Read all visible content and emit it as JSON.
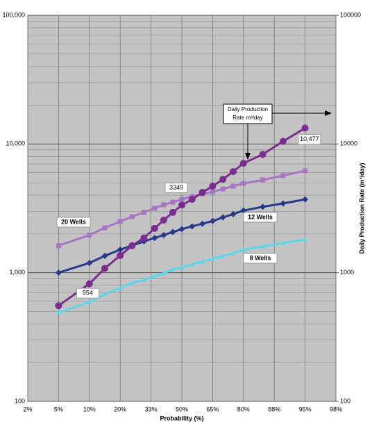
{
  "chart_data": {
    "type": "line",
    "xlabel": "Probability (%)",
    "y2label": "Daily Production Rate (m³/day)",
    "annotation": [
      "Daily Production",
      "Rate m³/day"
    ],
    "xscale": "probability",
    "yscale": "log",
    "grid": true,
    "minor_grid": true,
    "xlim": [
      2,
      98
    ],
    "xticks": [
      {
        "value": 2,
        "label": "2%"
      },
      {
        "value": 5,
        "label": "5%"
      },
      {
        "value": 10,
        "label": "10%"
      },
      {
        "value": 20,
        "label": "20%"
      },
      {
        "value": 33,
        "label": "33%"
      },
      {
        "value": 50,
        "label": "50%"
      },
      {
        "value": 65,
        "label": "65%"
      },
      {
        "value": 80,
        "label": "80%"
      },
      {
        "value": 88,
        "label": "88%"
      },
      {
        "value": 95,
        "label": "95%"
      },
      {
        "value": 98,
        "label": "98%"
      }
    ],
    "ylim": [
      100,
      100000
    ],
    "yticks": [
      100,
      {
        "value": 1000,
        "label": "1,000"
      },
      {
        "value": 10000,
        "label": "10,000"
      },
      {
        "value": 100000,
        "label": "100,000"
      }
    ],
    "y2lim": [
      100,
      100000
    ],
    "y2ticks": [
      100,
      1000,
      10000,
      100000
    ],
    "y2color": "#7b2c8f",
    "x": [
      5,
      10,
      15,
      20,
      25,
      30,
      35,
      40,
      45,
      50,
      55,
      60,
      65,
      70,
      75,
      80,
      85,
      90,
      95
    ],
    "series": [
      {
        "name": "20 Wells",
        "color": "#a674c2",
        "marker": "square",
        "values": [
          1620,
          1960,
          2230,
          2500,
          2720,
          2940,
          3170,
          3370,
          3530,
          3710,
          3900,
          4090,
          4250,
          4470,
          4700,
          4930,
          5260,
          5680,
          6190
        ]
      },
      {
        "name": "12 Wells",
        "color": "#27388a",
        "marker": "diamond",
        "values": [
          1000,
          1190,
          1350,
          1510,
          1620,
          1750,
          1860,
          1960,
          2070,
          2180,
          2290,
          2400,
          2520,
          2690,
          2850,
          3040,
          3250,
          3450,
          3710
        ]
      },
      {
        "name": "8 Wells",
        "color": "#5ed6ea",
        "marker": "triangle",
        "values": [
          490,
          590,
          680,
          760,
          830,
          880,
          940,
          990,
          1060,
          1100,
          1160,
          1220,
          1280,
          1350,
          1410,
          1510,
          1600,
          1700,
          1810
        ]
      },
      {
        "color": "#7b2c8f",
        "marker": "circle",
        "axis": "y2",
        "values": [
          554,
          820,
          1080,
          1360,
          1620,
          1860,
          2210,
          2560,
          2940,
          3349,
          3710,
          4210,
          4700,
          5320,
          6100,
          7080,
          8300,
          10477,
          13300
        ],
        "value_labels": [
          "554",
          null,
          null,
          null,
          null,
          null,
          null,
          null,
          null,
          "3349",
          null,
          null,
          null,
          null,
          null,
          null,
          null,
          "10,477",
          null
        ]
      }
    ]
  }
}
